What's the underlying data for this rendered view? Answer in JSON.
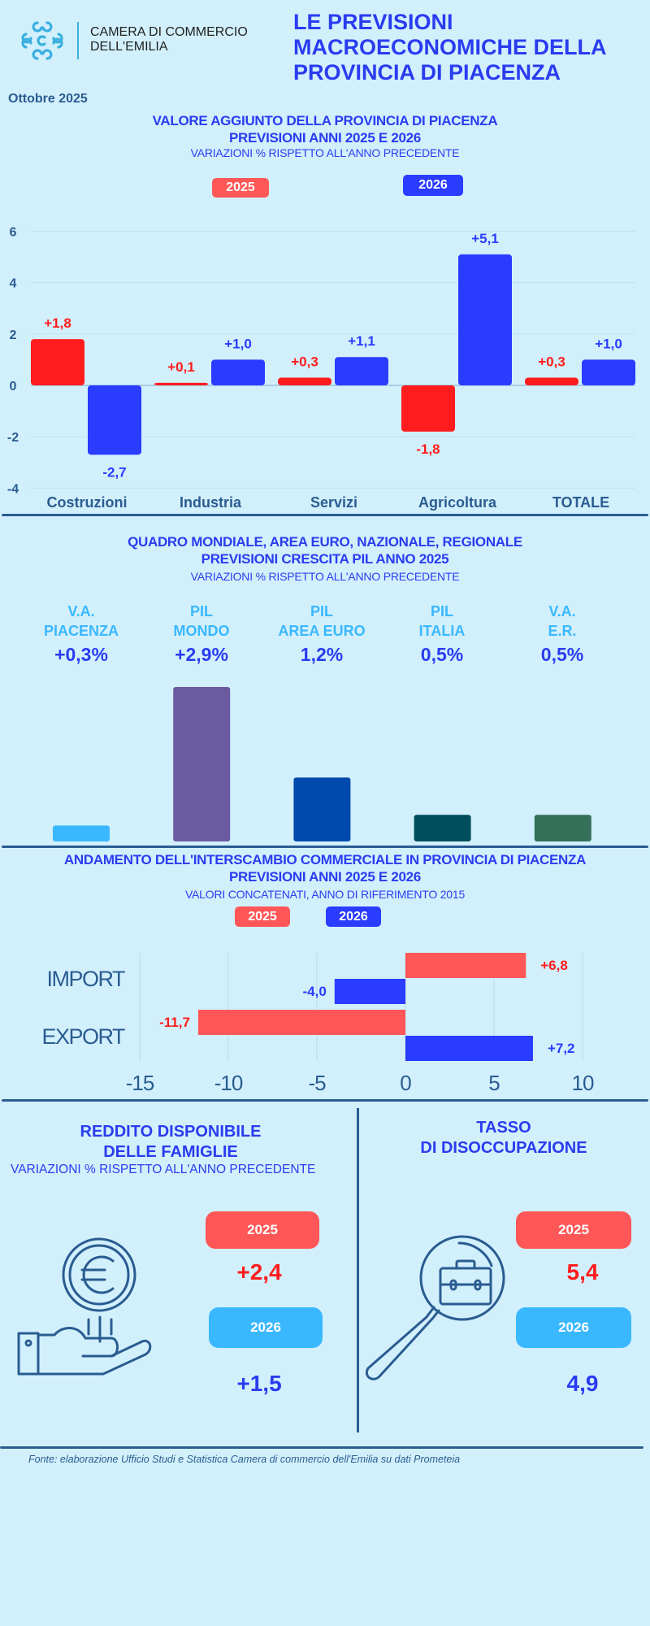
{
  "header": {
    "org_line1": "CAMERA DI COMMERCIO",
    "org_line2": "DELL'EMILIA",
    "title_lines": [
      "LE PREVISIONI",
      "MACROECONOMICHE DELLA",
      "PROVINCIA DI PIACENZA"
    ],
    "date": "Ottobre 2025"
  },
  "colors": {
    "background": "#d2f0fc",
    "title_blue": "#2a3cf0",
    "bar_2025": "#ff1c1c",
    "bar_2026": "#2a3cff",
    "legend_2025": "#ff5757",
    "axis_text": "#2a5c91",
    "light_blue": "#3ab8ff"
  },
  "section1": {
    "title_line1": "VALORE AGGIUNTO DELLA PROVINCIA DI PIACENZA",
    "title_line2": "PREVISIONI ANNI 2025 E 2026",
    "subtitle": "VARIAZIONI % RISPETTO ALL'ANNO PRECEDENTE",
    "legend": [
      "2025",
      "2026"
    ]
  },
  "section2": {
    "title_line1": "QUADRO MONDIALE, AREA EURO, NAZIONALE, REGIONALE",
    "title_line2": "PREVISIONI CRESCITA PIL ANNO 2025",
    "subtitle": "VARIAZIONI % RISPETTO ALL'ANNO PRECEDENTE",
    "columns": [
      {
        "line1": "V.A.",
        "line2": "PIACENZA",
        "value": "+0,3%"
      },
      {
        "line1": "PIL",
        "line2": "MONDO",
        "value": "+2,9%"
      },
      {
        "line1": "PIL",
        "line2": "AREA EURO",
        "value": "1,2%"
      },
      {
        "line1": "PIL",
        "line2": "ITALIA",
        "value": "0,5%"
      },
      {
        "line1": "V.A.",
        "line2": "E.R.",
        "value": "0,5%"
      }
    ]
  },
  "section3": {
    "title_line1": "ANDAMENTO DELL'INTERSCAMBIO COMMERCIALE IN PROVINCIA DI PIACENZA",
    "title_line2": "PREVISIONI ANNI  2025 E 2026",
    "subtitle": "VALORI CONCATENATI, ANNO DI RIFERIMENTO 2015",
    "legend": [
      "2025",
      "2026"
    ]
  },
  "section4": {
    "income": {
      "title_line1": "REDDITO DISPONIBILE",
      "title_line2": "DELLE FAMIGLIE",
      "subtitle": "VARIAZIONI % RISPETTO ALL'ANNO PRECEDENTE",
      "year1": "2025",
      "value1": "+2,4",
      "year2": "2026",
      "value2": "+1,5",
      "icon": "hand-euro-coin-icon"
    },
    "unemployment": {
      "title_line1": "TASSO",
      "title_line2": "DI DISOCCUPAZIONE",
      "year1": "2025",
      "value1": "5,4",
      "year2": "2026",
      "value2": "4,9",
      "icon": "magnifier-briefcase-icon"
    }
  },
  "footer": {
    "source": "Fonte: elaborazione Ufficio Studi e Statistica Camera di commercio dell'Emilia su dati Prometeia"
  },
  "chart_data": [
    {
      "type": "bar",
      "categories": [
        "Costruzioni",
        "Industria",
        "Servizi",
        "Agricoltura",
        "TOTALE"
      ],
      "series": [
        {
          "name": "2025",
          "values": [
            1.8,
            0.1,
            0.3,
            -1.8,
            0.3
          ],
          "labels": [
            "+1,8",
            "+0,1",
            "+0,3",
            "-1,8",
            "+0,3"
          ],
          "color": "#ff1c1c"
        },
        {
          "name": "2026",
          "values": [
            -2.7,
            1.0,
            1.1,
            5.1,
            1.0
          ],
          "labels": [
            "-2,7",
            "+1,0",
            "+1,1",
            "+5,1",
            "+1,0"
          ],
          "color": "#2a3cff"
        }
      ],
      "ylim": [
        -4,
        6
      ],
      "yticks": [
        -4,
        -2,
        0,
        2,
        4,
        6
      ],
      "grid": true
    },
    {
      "type": "bar",
      "categories": [
        "V.A. PIACENZA",
        "PIL MONDO",
        "PIL AREA EURO",
        "PIL ITALIA",
        "V.A. E.R."
      ],
      "values": [
        0.3,
        2.9,
        1.2,
        0.5,
        0.5
      ],
      "colors": [
        "#3ab8ff",
        "#6a5aa0",
        "#004aad",
        "#004f5c",
        "#34705a"
      ],
      "grid": false
    },
    {
      "type": "bar",
      "orientation": "horizontal",
      "categories": [
        "IMPORT",
        "EXPORT"
      ],
      "series": [
        {
          "name": "2025",
          "values": [
            6.8,
            -11.7
          ],
          "labels": [
            "+6,8",
            "-11,7"
          ],
          "color": "#ff5757",
          "label_color": "#ff1c1c"
        },
        {
          "name": "2026",
          "values": [
            -4.0,
            7.2
          ],
          "labels": [
            "-4,0",
            "+7,2"
          ],
          "color": "#2a3cff",
          "label_color": "#2a3cff"
        }
      ],
      "xlim": [
        -15,
        10
      ],
      "xticks": [
        -15,
        -10,
        -5,
        0,
        5,
        10
      ],
      "grid": true
    }
  ]
}
